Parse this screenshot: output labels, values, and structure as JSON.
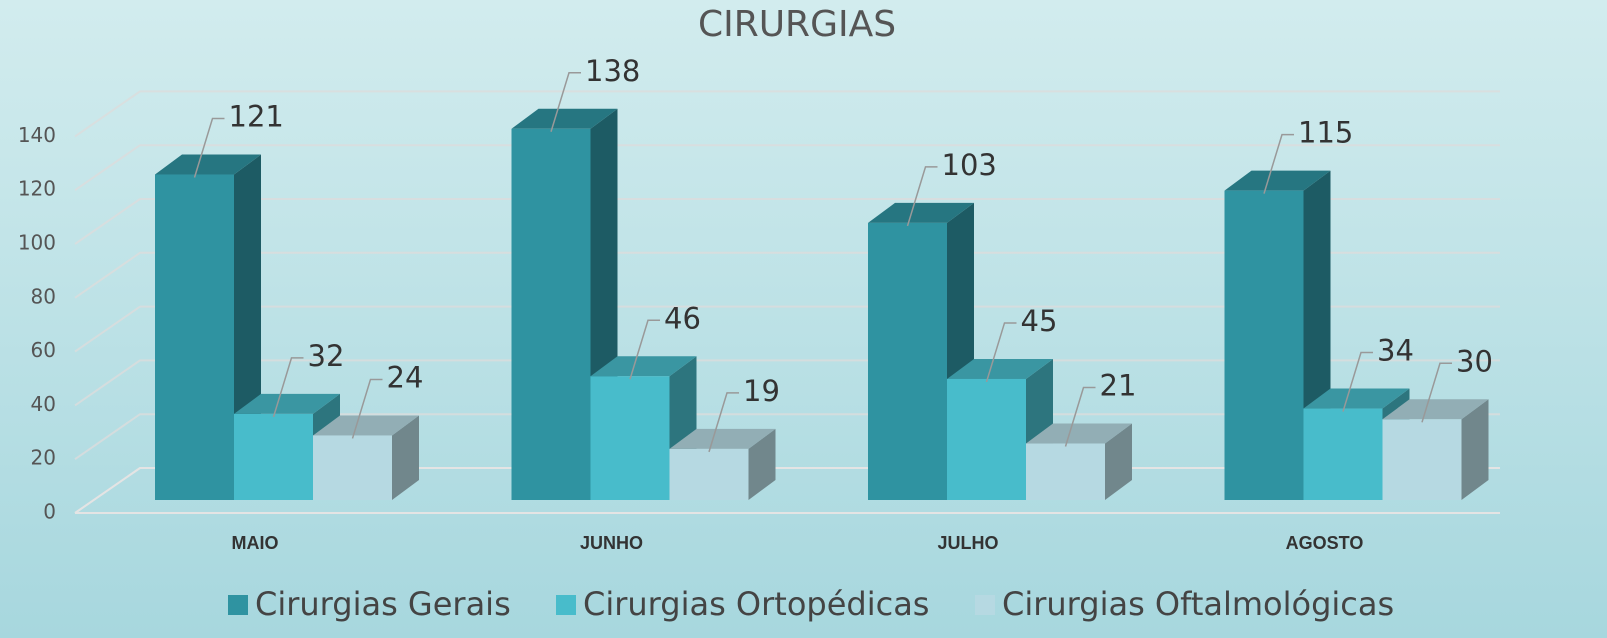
{
  "chart_data": {
    "type": "bar3d",
    "title": "CIRURGIAS",
    "categories": [
      "MAIO",
      "JUNHO",
      "JULHO",
      "AGOSTO"
    ],
    "series": [
      {
        "name": "Cirurgias Gerais",
        "color": "#2f93a1",
        "values": [
          121,
          138,
          103,
          115
        ]
      },
      {
        "name": "Cirurgias Ortopédicas",
        "color": "#48bccb",
        "values": [
          32,
          46,
          45,
          34
        ]
      },
      {
        "name": "Cirurgias Oftalmológicas",
        "color": "#b6d9e2",
        "values": [
          24,
          19,
          21,
          30
        ]
      }
    ],
    "ylim": [
      0,
      140
    ],
    "yticks": [
      0,
      20,
      40,
      60,
      80,
      100,
      120,
      140
    ],
    "grid": true,
    "legend": "bottom"
  }
}
